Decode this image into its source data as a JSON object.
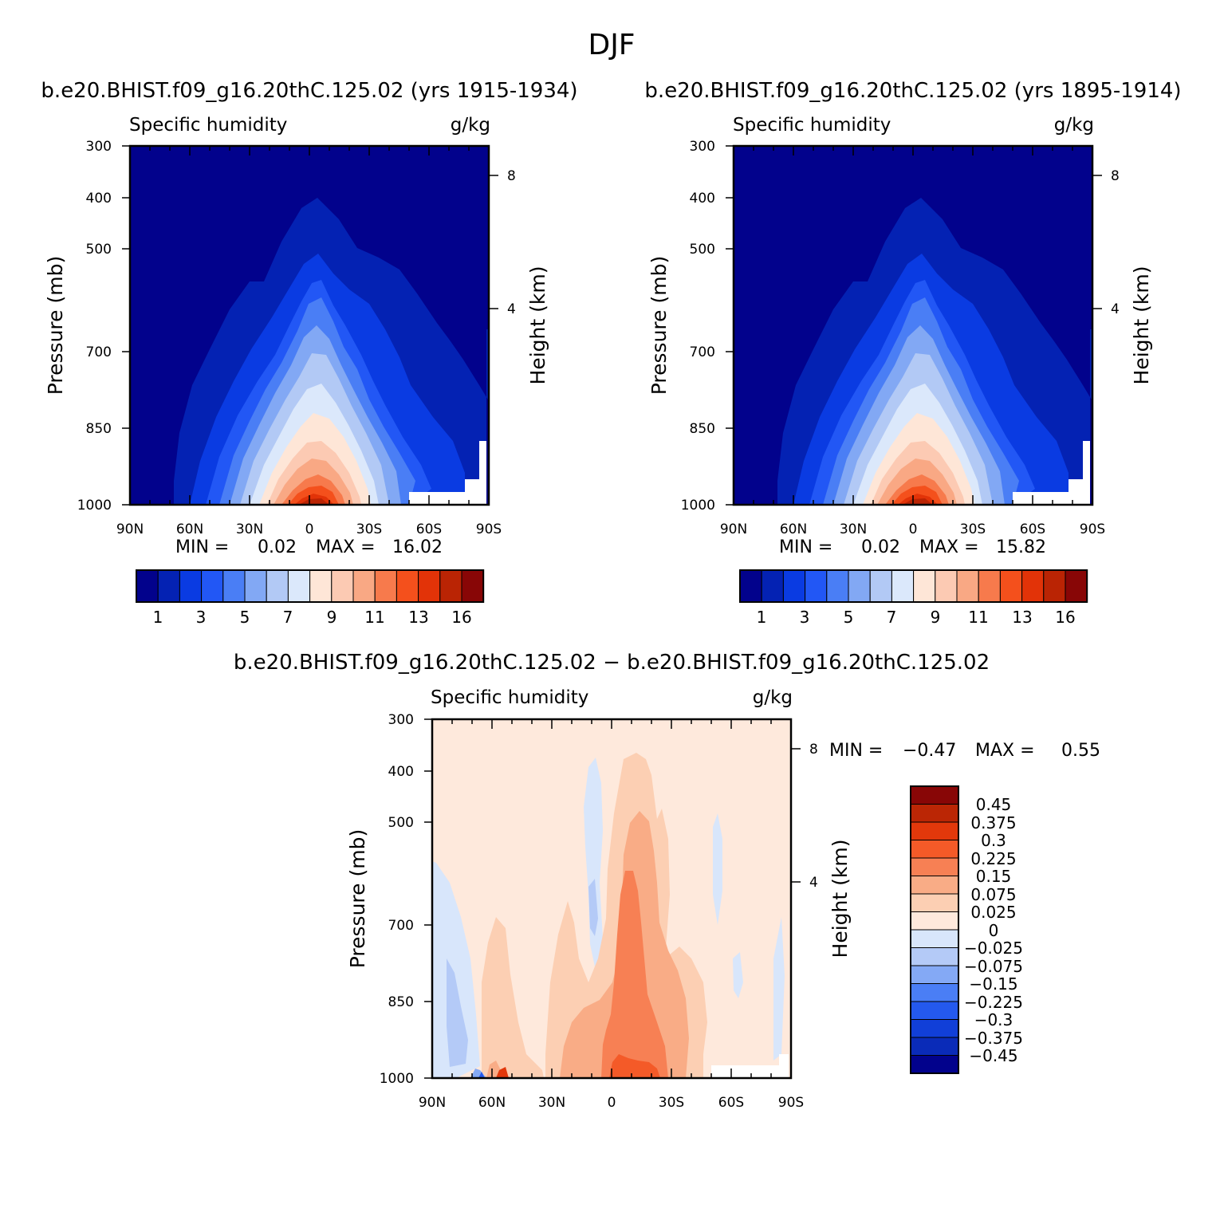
{
  "figure": {
    "season": "DJF"
  },
  "colors": {
    "abs_palette": [
      "#02028c",
      "#0422b3",
      "#0a3be2",
      "#2257f5",
      "#4a7ef5",
      "#82a8f4",
      "#b2c9f5",
      "#dbe8fb",
      "#fee6d7",
      "#fccab3",
      "#f9a884",
      "#f77a4c",
      "#f4501c",
      "#e23308",
      "#ba2404",
      "#880606"
    ],
    "diff_palette": [
      "#02028c",
      "#0a2bb8",
      "#113fd8",
      "#2459ee",
      "#4a7ef5",
      "#84a9f5",
      "#b4caf7",
      "#d8e6fb",
      "#fee9dc",
      "#fccfb3",
      "#f9ac86",
      "#f78054",
      "#f45a28",
      "#e2380b",
      "#bb2605",
      "#880606"
    ]
  },
  "chart_data": [
    {
      "type": "contour",
      "title": "b.e20.BHIST.f09_g16.20thC.125.02 (yrs 1915-1934)",
      "variable": "Specific humidity",
      "units": "g/kg",
      "ylabel": "Pressure (mb)",
      "ylabel_right": "Height (km)",
      "x_ticks": [
        "90N",
        "60N",
        "30N",
        "0",
        "30S",
        "60S",
        "90S"
      ],
      "y_ticks": [
        "300",
        "400",
        "500",
        "700",
        "850",
        "1000"
      ],
      "y2_ticks": [
        "8",
        "4"
      ],
      "stats": {
        "min_label": "MIN =",
        "min": "0.02",
        "max_label": "MAX =",
        "max": "16.02"
      },
      "colorbar_labels": [
        "1",
        "3",
        "5",
        "7",
        "9",
        "11",
        "13",
        "16"
      ],
      "levels": [
        1,
        2,
        3,
        4,
        5,
        6,
        7,
        8,
        9,
        10,
        11,
        12,
        13,
        14,
        16
      ]
    },
    {
      "type": "contour",
      "title": "b.e20.BHIST.f09_g16.20thC.125.02 (yrs 1895-1914)",
      "variable": "Specific humidity",
      "units": "g/kg",
      "ylabel": "Pressure (mb)",
      "ylabel_right": "Height (km)",
      "x_ticks": [
        "90N",
        "60N",
        "30N",
        "0",
        "30S",
        "60S",
        "90S"
      ],
      "y_ticks": [
        "300",
        "400",
        "500",
        "700",
        "850",
        "1000"
      ],
      "y2_ticks": [
        "8",
        "4"
      ],
      "stats": {
        "min_label": "MIN =",
        "min": "0.02",
        "max_label": "MAX =",
        "max": "15.82"
      },
      "colorbar_labels": [
        "1",
        "3",
        "5",
        "7",
        "9",
        "11",
        "13",
        "16"
      ],
      "levels": [
        1,
        2,
        3,
        4,
        5,
        6,
        7,
        8,
        9,
        10,
        11,
        12,
        13,
        14,
        16
      ]
    },
    {
      "type": "contour",
      "title": "b.e20.BHIST.f09_g16.20thC.125.02 − b.e20.BHIST.f09_g16.20thC.125.02",
      "variable": "Specific humidity",
      "units": "g/kg",
      "ylabel": "Pressure (mb)",
      "ylabel_right": "Height (km)",
      "x_ticks": [
        "90N",
        "60N",
        "30N",
        "0",
        "30S",
        "60S",
        "90S"
      ],
      "y_ticks": [
        "300",
        "400",
        "500",
        "700",
        "850",
        "1000"
      ],
      "y2_ticks": [
        "8",
        "4"
      ],
      "stats": {
        "min_label": "MIN =",
        "min": "−0.47",
        "max_label": "MAX =",
        "max": "0.55"
      },
      "colorbar_labels": [
        "0.45",
        "0.375",
        "0.3",
        "0.225",
        "0.15",
        "0.075",
        "0.025",
        "0",
        "−0.025",
        "−0.075",
        "−0.15",
        "−0.225",
        "−0.3",
        "−0.375",
        "−0.45"
      ]
    }
  ]
}
